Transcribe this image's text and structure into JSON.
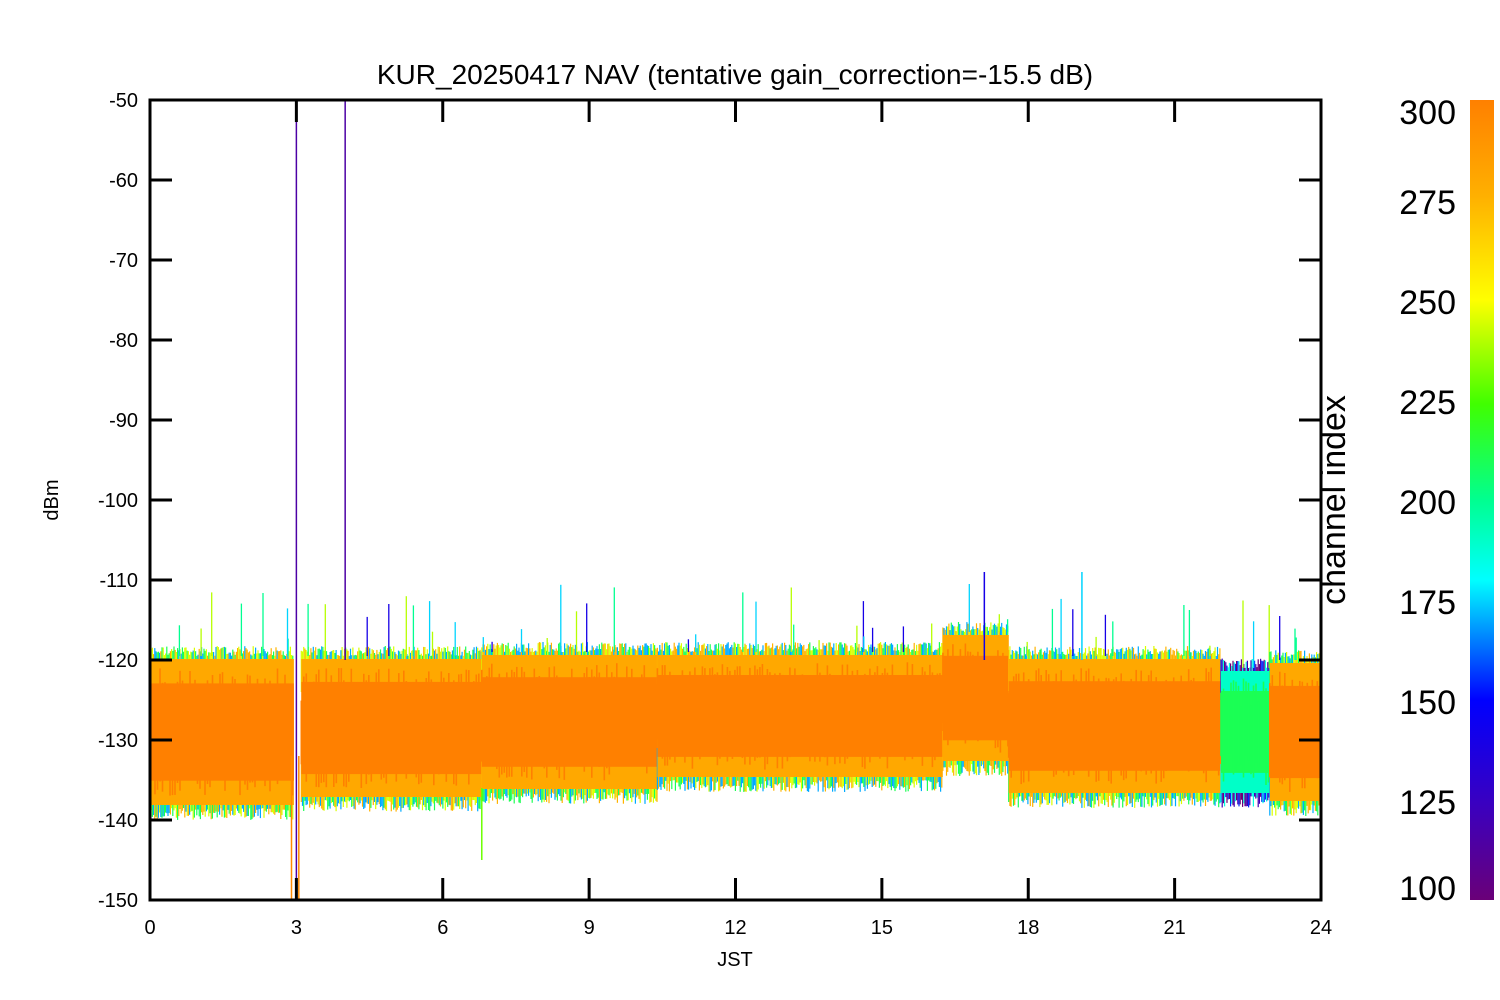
{
  "chart_data": {
    "type": "line",
    "title": "KUR_20250417 NAV (tentative gain_correction=-15.5 dB)",
    "xlabel": "JST",
    "ylabel": "dBm",
    "xlim": [
      0,
      24
    ],
    "ylim": [
      -150,
      -50
    ],
    "x_ticks": [
      "0",
      "3",
      "6",
      "9",
      "12",
      "15",
      "18",
      "21",
      "24"
    ],
    "y_ticks": [
      "-50",
      "-60",
      "-70",
      "-80",
      "-90",
      "-100",
      "-110",
      "-120",
      "-130",
      "-140",
      "-150"
    ],
    "grid": false,
    "colorbar": {
      "label": "channel index",
      "range": [
        100,
        300
      ],
      "ticks": [
        "300",
        "275",
        "250",
        "225",
        "200",
        "175",
        "150",
        "125",
        "100"
      ]
    },
    "segments": [
      {
        "x_start": 0.0,
        "x_end": 2.95,
        "dominant_channel": 300,
        "center": -128.5,
        "top": -119.5,
        "bottom": -138.5
      },
      {
        "x_start": 3.1,
        "x_end": 6.8,
        "dominant_channel": 300,
        "center": -128.5,
        "top": -119.5,
        "bottom": -137.5
      },
      {
        "x_start": 6.8,
        "x_end": 10.4,
        "dominant_channel": 300,
        "center": -128.0,
        "top": -119.0,
        "bottom": -136.5
      },
      {
        "x_start": 10.4,
        "x_end": 16.25,
        "dominant_channel": 300,
        "center": -127.0,
        "top": -119.0,
        "bottom": -135.0
      },
      {
        "x_start": 16.25,
        "x_end": 17.6,
        "dominant_channel": 300,
        "center": -124.5,
        "top": -116.5,
        "bottom": -133.0
      },
      {
        "x_start": 17.6,
        "x_end": 21.95,
        "dominant_channel": 300,
        "center": -128.0,
        "top": -119.5,
        "bottom": -137.0
      },
      {
        "x_start": 21.95,
        "x_end": 22.95,
        "dominant_channel": 210,
        "center": -130.0,
        "top": -121.0,
        "bottom": -137.0
      },
      {
        "x_start": 22.95,
        "x_end": 24.0,
        "dominant_channel": 300,
        "center": -129.0,
        "top": -120.0,
        "bottom": -138.0
      }
    ],
    "spikes": [
      {
        "x": 3.0,
        "y_top": -51.5,
        "y_bottom": -150,
        "channel": 115
      },
      {
        "x": 4.0,
        "y_top": -50,
        "y_bottom": -120,
        "channel": 115
      },
      {
        "x": 3.05,
        "y_top": -132,
        "y_bottom": -150,
        "channel": 295
      },
      {
        "x": 2.9,
        "y_top": -132,
        "y_bottom": -150,
        "channel": 295
      },
      {
        "x": 17.1,
        "y_top": -109,
        "y_bottom": -120,
        "channel": 140
      },
      {
        "x": 19.1,
        "y_top": -109,
        "y_bottom": -120,
        "channel": 175
      },
      {
        "x": 6.8,
        "y_top": -136,
        "y_bottom": -145,
        "channel": 230
      }
    ]
  }
}
